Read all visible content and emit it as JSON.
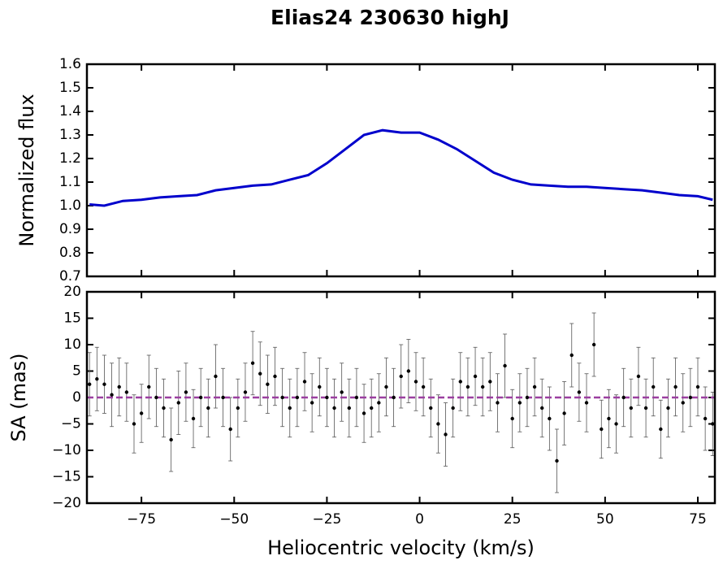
{
  "chart_data": [
    {
      "type": "line",
      "title": "Elias24 230630 highJ",
      "ylabel": "Normalized flux",
      "color": "#0000cc",
      "x": [
        -89,
        -85,
        -80,
        -75,
        -70,
        -65,
        -60,
        -55,
        -50,
        -45,
        -40,
        -35,
        -30,
        -25,
        -20,
        -15,
        -10,
        -5,
        0,
        5,
        10,
        15,
        20,
        25,
        30,
        35,
        40,
        45,
        50,
        55,
        60,
        65,
        70,
        75,
        79
      ],
      "values": [
        1.005,
        1.0,
        1.02,
        1.025,
        1.035,
        1.04,
        1.045,
        1.065,
        1.075,
        1.085,
        1.09,
        1.11,
        1.13,
        1.18,
        1.24,
        1.3,
        1.32,
        1.31,
        1.31,
        1.28,
        1.24,
        1.19,
        1.14,
        1.11,
        1.09,
        1.085,
        1.08,
        1.08,
        1.075,
        1.07,
        1.065,
        1.055,
        1.045,
        1.04,
        1.025
      ],
      "xlim": [
        -89.7,
        79.6
      ],
      "xticks": [
        -75,
        -50,
        -25,
        0,
        25,
        50,
        75
      ],
      "ylim": [
        0.7,
        1.6
      ],
      "yticks": [
        0.7,
        0.8,
        0.9,
        {
          "value": 1.0,
          "label": "1.0"
        },
        1.1,
        1.2,
        1.3,
        1.4,
        1.5,
        1.6
      ]
    },
    {
      "type": "errorbar",
      "ylabel": "SA (mas)",
      "xlabel": "Heliocentric velocity (km/s)",
      "color": "#000000",
      "reference_line": {
        "value": 0,
        "color": "#9b3fa0"
      },
      "x": [
        -89,
        -87,
        -85,
        -83,
        -81,
        -79,
        -77,
        -75,
        -73,
        -71,
        -69,
        -67,
        -65,
        -63,
        -61,
        -59,
        -57,
        -55,
        -53,
        -51,
        -49,
        -47,
        -45,
        -43,
        -41,
        -39,
        -37,
        -35,
        -33,
        -31,
        -29,
        -27,
        -25,
        -23,
        -21,
        -19,
        -17,
        -15,
        -13,
        -11,
        -9,
        -7,
        -5,
        -3,
        -1,
        1,
        3,
        5,
        7,
        9,
        11,
        13,
        15,
        17,
        19,
        21,
        23,
        25,
        27,
        29,
        31,
        33,
        35,
        37,
        39,
        41,
        43,
        45,
        47,
        49,
        51,
        53,
        55,
        57,
        59,
        61,
        63,
        65,
        67,
        69,
        71,
        73,
        75,
        77,
        79
      ],
      "values": [
        2.5,
        3.5,
        2.5,
        0.5,
        2,
        1,
        -5,
        -3,
        2,
        0,
        -2,
        -8,
        -1,
        1,
        -4,
        0,
        -2,
        4,
        0,
        -6,
        -2,
        1,
        6.5,
        4.5,
        2.5,
        4,
        0,
        -2,
        0,
        3,
        -1,
        2,
        0,
        -2,
        1,
        -2,
        0,
        -3,
        -2,
        -1,
        2,
        0,
        4,
        5,
        3,
        2,
        -2,
        -5,
        -7,
        -2,
        3,
        2,
        4,
        2,
        3,
        -1,
        6,
        -4,
        -1,
        0,
        2,
        -2,
        -4,
        -12,
        -3,
        8,
        1,
        -1,
        10,
        -6,
        -4,
        -5,
        0,
        -2,
        4,
        -2,
        2,
        -6,
        -2,
        2,
        -1,
        0,
        2,
        -4,
        -5
      ],
      "errors": [
        6,
        6,
        5.5,
        6,
        5.5,
        5.5,
        5.5,
        5.5,
        6,
        5.5,
        5.5,
        6,
        6,
        5.5,
        5.5,
        5.5,
        5.5,
        6,
        5.5,
        6,
        5.5,
        5.5,
        6,
        6,
        5.5,
        5.5,
        5.5,
        5.5,
        5.5,
        5.5,
        5.5,
        5.5,
        5.5,
        5.5,
        5.5,
        5.5,
        5.5,
        5.5,
        5.5,
        5.5,
        5.5,
        5.5,
        6,
        6,
        5.5,
        5.5,
        5.5,
        5.5,
        6,
        5.5,
        5.5,
        5.5,
        5.5,
        5.5,
        5.5,
        5.5,
        6,
        5.5,
        5.5,
        5.5,
        5.5,
        5.5,
        6,
        6,
        6,
        6,
        5.5,
        5.5,
        6,
        5.5,
        5.5,
        5.5,
        5.5,
        5.5,
        5.5,
        5.5,
        5.5,
        5.5,
        5.5,
        5.5,
        5.5,
        5.5,
        5.5,
        6,
        6
      ],
      "xlim": [
        -89.7,
        79.6
      ],
      "xticks": [
        {
          "value": -75,
          "label": "−75"
        },
        {
          "value": -50,
          "label": "−50"
        },
        {
          "value": -25,
          "label": "−25"
        },
        0,
        25,
        50,
        75
      ],
      "ylim": [
        -20,
        20
      ],
      "yticks": [
        {
          "value": -20,
          "label": "−20"
        },
        {
          "value": -15,
          "label": "−15"
        },
        {
          "value": -10,
          "label": "−10"
        },
        {
          "value": -5,
          "label": "−5"
        },
        0,
        5,
        10,
        15,
        20
      ]
    }
  ]
}
